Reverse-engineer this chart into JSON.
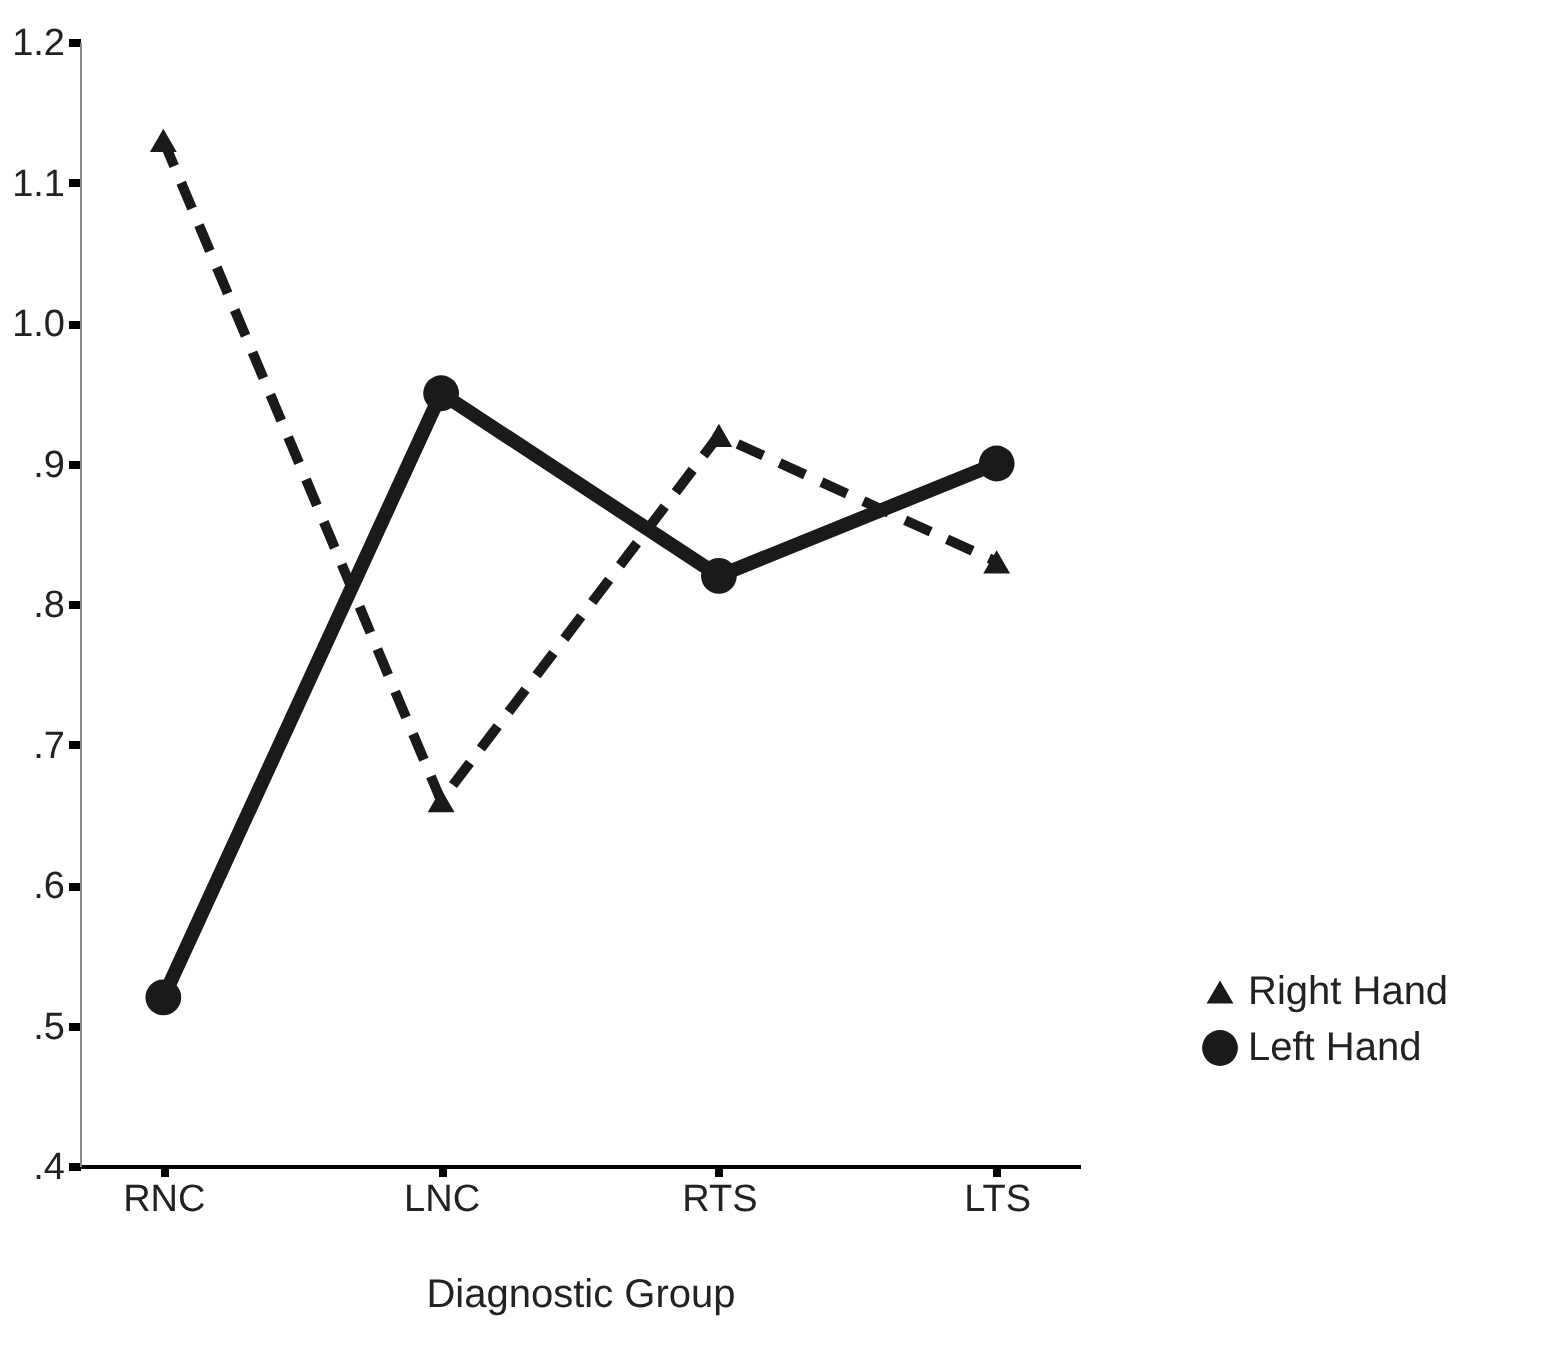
{
  "chart_data": {
    "type": "line",
    "xlabel": "Diagnostic Group",
    "categories": [
      "RNC",
      "LNC",
      "RTS",
      "LTS"
    ],
    "series": [
      {
        "name": "Right Hand",
        "color": "#1a1a1a",
        "values": [
          1.13,
          0.66,
          0.92,
          0.83
        ],
        "marker": "triangle",
        "line_style": "dashed"
      },
      {
        "name": "Left Hand",
        "color": "#1a1a1a",
        "values": [
          0.52,
          0.95,
          0.82,
          0.9
        ],
        "marker": "circle",
        "line_style": "solid"
      }
    ],
    "ylim": [
      0.4,
      1.2
    ],
    "yticks": [
      {
        "value": 0.4,
        "label": ".4"
      },
      {
        "value": 0.5,
        "label": ".5"
      },
      {
        "value": 0.6,
        "label": ".6"
      },
      {
        "value": 0.7,
        "label": ".7"
      },
      {
        "value": 0.8,
        "label": ".8"
      },
      {
        "value": 0.9,
        "label": ".9"
      },
      {
        "value": 1,
        "label": "1.0"
      },
      1.1,
      1.2
    ],
    "grid": false,
    "legend": "bottom right"
  }
}
